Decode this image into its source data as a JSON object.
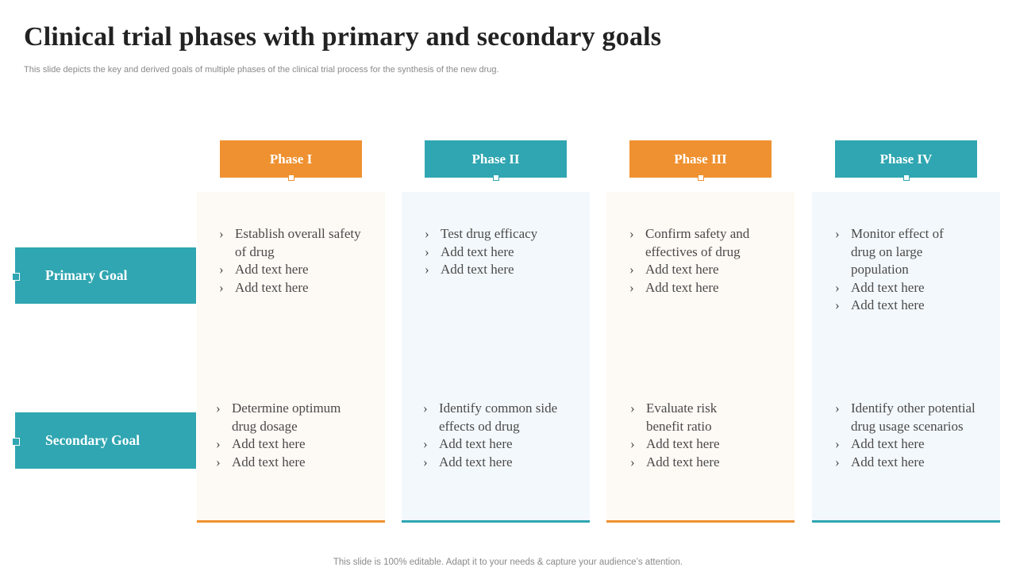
{
  "title": "Clinical trial phases with primary and secondary goals",
  "subtitle": "This slide depicts the key and derived goals of multiple phases of the clinical trial process for the synthesis of the new drug.",
  "footer": "This slide is 100% editable. Adapt it to your needs & capture your audience’s attention.",
  "colors": {
    "orange": "#ef9130",
    "teal": "#2fa6b1"
  },
  "goals": {
    "primary": "Primary Goal",
    "secondary": "Secondary Goal"
  },
  "phases": [
    {
      "name": "Phase I",
      "primary": [
        "Establish overall safety of drug",
        "Add text here",
        "Add text here"
      ],
      "secondary": [
        "Determine optimum drug dosage",
        "Add text here",
        "Add text here"
      ]
    },
    {
      "name": "Phase II",
      "primary": [
        "Test drug efficacy",
        "Add text here",
        "Add text here"
      ],
      "secondary": [
        "Identify common side effects od drug",
        "Add text here",
        "Add text here"
      ]
    },
    {
      "name": "Phase III",
      "primary": [
        "Confirm safety and effectives of drug",
        "Add text here",
        "Add text here"
      ],
      "secondary": [
        "Evaluate risk benefit ratio",
        "Add text here",
        "Add text here"
      ]
    },
    {
      "name": "Phase IV",
      "primary": [
        "Monitor effect of drug on large population",
        "Add text here",
        "Add text here"
      ],
      "secondary": [
        "Identify other potential drug usage scenarios",
        "Add text here",
        "Add text here"
      ]
    }
  ]
}
